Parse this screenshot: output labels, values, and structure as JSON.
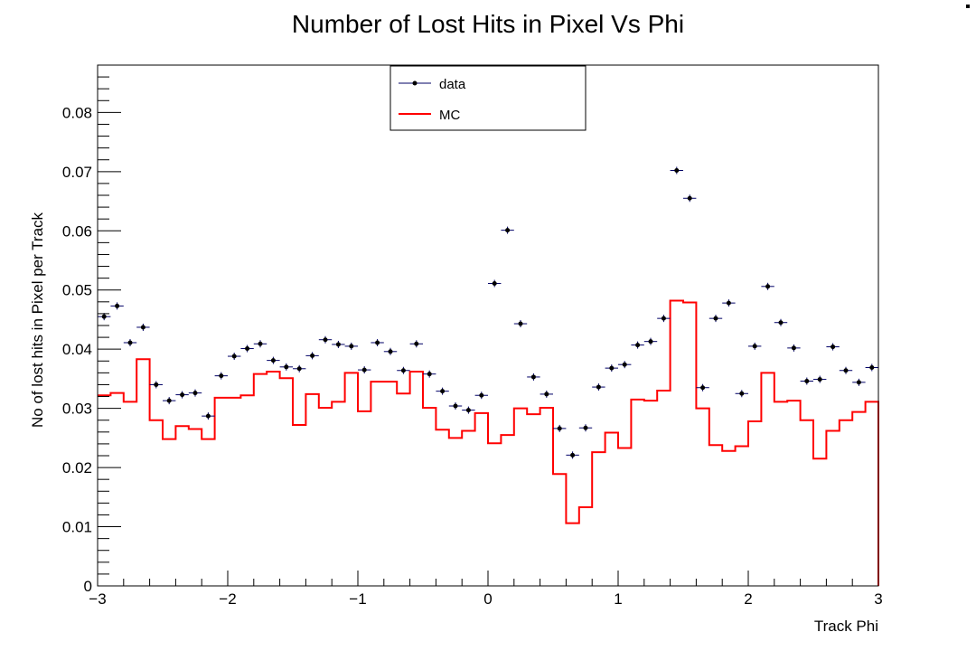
{
  "chart_data": {
    "type": "line",
    "title": "Number of Lost Hits in Pixel Vs Phi",
    "xlabel": "Track Phi",
    "ylabel": "No of lost hits in Pixel per Track",
    "xlim": [
      -3,
      3
    ],
    "ylim": [
      0,
      0.088
    ],
    "xticks": [
      "−3",
      "−2",
      "−1",
      "0",
      "1",
      "2",
      "3"
    ],
    "yticks": [
      "0",
      "0.01",
      "0.02",
      "0.03",
      "0.04",
      "0.05",
      "0.06",
      "0.07",
      "0.08"
    ],
    "legend_position": "top-center",
    "grid": false,
    "series": [
      {
        "name": "data",
        "style": "points",
        "color": "#000000",
        "x": [
          -2.95,
          -2.85,
          -2.75,
          -2.65,
          -2.55,
          -2.45,
          -2.35,
          -2.25,
          -2.15,
          -2.05,
          -1.95,
          -1.85,
          -1.75,
          -1.65,
          -1.55,
          -1.45,
          -1.35,
          -1.25,
          -1.15,
          -1.05,
          -0.95,
          -0.85,
          -0.75,
          -0.65,
          -0.55,
          -0.45,
          -0.35,
          -0.25,
          -0.15,
          -0.05,
          0.05,
          0.15,
          0.25,
          0.35,
          0.45,
          0.55,
          0.65,
          0.75,
          0.85,
          0.95,
          1.05,
          1.15,
          1.25,
          1.35,
          1.45,
          1.55,
          1.65,
          1.75,
          1.85,
          1.95,
          2.05,
          2.15,
          2.25,
          2.35,
          2.45,
          2.55,
          2.65,
          2.75,
          2.85,
          2.95
        ],
        "y": [
          0.0455,
          0.0473,
          0.0411,
          0.0437,
          0.034,
          0.0313,
          0.0323,
          0.0326,
          0.0287,
          0.0355,
          0.0388,
          0.0401,
          0.0409,
          0.0381,
          0.037,
          0.0367,
          0.0389,
          0.0416,
          0.0408,
          0.0405,
          0.0365,
          0.0411,
          0.0396,
          0.0364,
          0.0409,
          0.0358,
          0.0329,
          0.0304,
          0.0297,
          0.0322,
          0.0511,
          0.0601,
          0.0443,
          0.0353,
          0.0324,
          0.0266,
          0.0221,
          0.0267,
          0.0336,
          0.0368,
          0.0374,
          0.0407,
          0.0413,
          0.0452,
          0.0702,
          0.0655,
          0.0335,
          0.0452,
          0.0478,
          0.0325,
          0.0405,
          0.0506,
          0.0445,
          0.0402,
          0.0346,
          0.0349,
          0.0404,
          0.0364,
          0.0344,
          0.0369
        ]
      },
      {
        "name": "MC",
        "style": "step",
        "color": "#ff0000",
        "x": [
          -2.95,
          -2.85,
          -2.75,
          -2.65,
          -2.55,
          -2.45,
          -2.35,
          -2.25,
          -2.15,
          -2.05,
          -1.95,
          -1.85,
          -1.75,
          -1.65,
          -1.55,
          -1.45,
          -1.35,
          -1.25,
          -1.15,
          -1.05,
          -0.95,
          -0.85,
          -0.75,
          -0.65,
          -0.55,
          -0.45,
          -0.35,
          -0.25,
          -0.15,
          -0.05,
          0.05,
          0.15,
          0.25,
          0.35,
          0.45,
          0.55,
          0.65,
          0.75,
          0.85,
          0.95,
          1.05,
          1.15,
          1.25,
          1.35,
          1.45,
          1.55,
          1.65,
          1.75,
          1.85,
          1.95,
          2.05,
          2.15,
          2.25,
          2.35,
          2.45,
          2.55,
          2.65,
          2.75,
          2.85,
          2.95
        ],
        "y": [
          0.0322,
          0.0326,
          0.0311,
          0.0383,
          0.028,
          0.0248,
          0.027,
          0.0265,
          0.0248,
          0.0318,
          0.0318,
          0.0322,
          0.0358,
          0.0362,
          0.0351,
          0.0272,
          0.0324,
          0.0301,
          0.0311,
          0.036,
          0.0295,
          0.0345,
          0.0345,
          0.0325,
          0.0362,
          0.0301,
          0.0264,
          0.025,
          0.0262,
          0.0292,
          0.0241,
          0.0255,
          0.03,
          0.029,
          0.0301,
          0.0189,
          0.0106,
          0.0133,
          0.0226,
          0.0259,
          0.0233,
          0.0315,
          0.0313,
          0.033,
          0.0482,
          0.0479,
          0.03,
          0.0238,
          0.0228,
          0.0236,
          0.0278,
          0.036,
          0.0311,
          0.0313,
          0.028,
          0.0215,
          0.0262,
          0.028,
          0.0294,
          0.0311
        ]
      }
    ]
  }
}
